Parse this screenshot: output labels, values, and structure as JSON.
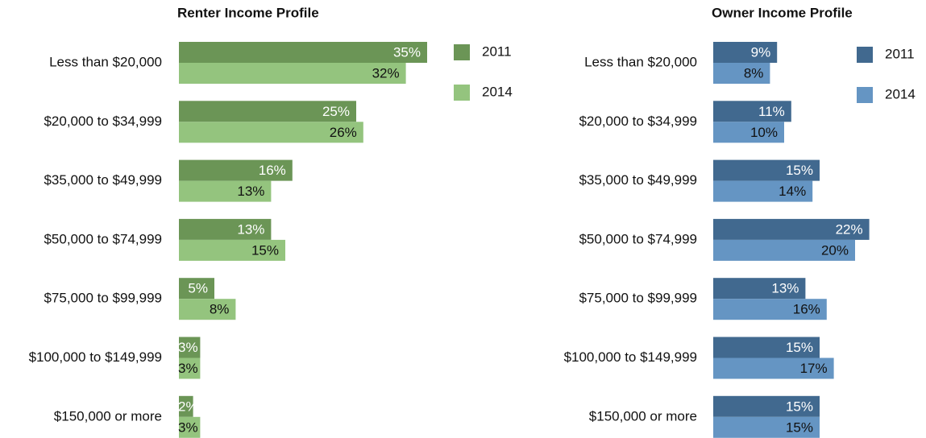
{
  "chart_data": [
    {
      "type": "bar",
      "orientation": "horizontal",
      "title": "Renter Income Profile",
      "categories": [
        "Less than $20,000",
        "$20,000 to $34,999",
        "$35,000 to $49,999",
        "$50,000 to $74,999",
        "$75,000 to $99,999",
        "$100,000 to $149,999",
        "$150,000 or more"
      ],
      "series": [
        {
          "name": "2011",
          "color": "#6b9556",
          "values": [
            35,
            25,
            16,
            13,
            5,
            3,
            2
          ],
          "value_labels": [
            "35%",
            "25%",
            "16%",
            "13%",
            "5%",
            "3%",
            "2%"
          ]
        },
        {
          "name": "2014",
          "color": "#94c47e",
          "values": [
            32,
            26,
            13,
            15,
            8,
            3,
            3
          ],
          "value_labels": [
            "32%",
            "26%",
            "13%",
            "15%",
            "8%",
            "3%",
            "3%"
          ]
        }
      ],
      "legend": "top-right"
    },
    {
      "type": "bar",
      "orientation": "horizontal",
      "title": "Owner Income Profile",
      "categories": [
        "Less than $20,000",
        "$20,000 to $34,999",
        "$35,000 to $49,999",
        "$50,000 to $74,999",
        "$75,000 to $99,999",
        "$100,000 to $149,999",
        "$150,000 or more"
      ],
      "series": [
        {
          "name": "2011",
          "color": "#41698f",
          "values": [
            9,
            11,
            15,
            22,
            13,
            15,
            15
          ],
          "value_labels": [
            "9%",
            "11%",
            "15%",
            "22%",
            "13%",
            "15%",
            "15%"
          ]
        },
        {
          "name": "2014",
          "color": "#6595c3",
          "values": [
            8,
            10,
            14,
            20,
            16,
            17,
            15
          ],
          "value_labels": [
            "8%",
            "10%",
            "14%",
            "20%",
            "16%",
            "17%",
            "15%"
          ]
        }
      ],
      "legend": "top-right"
    }
  ]
}
